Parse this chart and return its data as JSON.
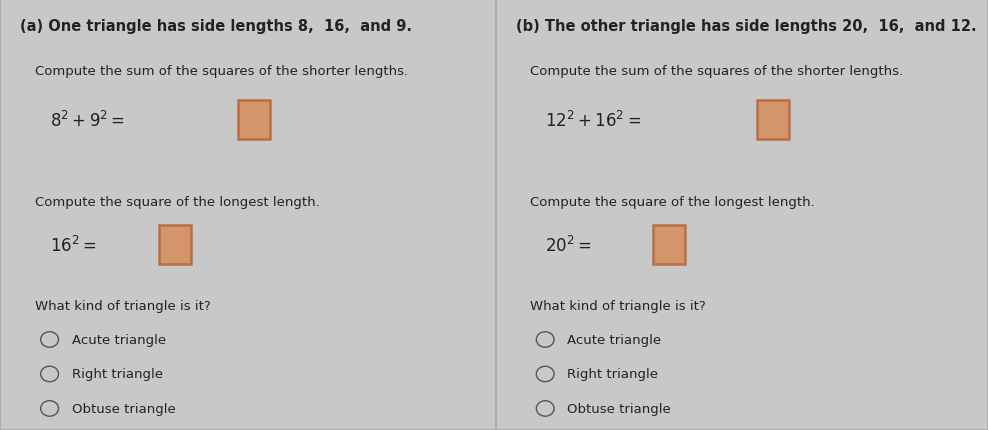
{
  "bg_color": "#c8c8c8",
  "panel_bg": "#d4d4d4",
  "left_panel": {
    "title": "(a) One triangle has side lengths 8,  16,  and 9.",
    "subtitle1": "Compute the sum of the squares of the shorter lengths.",
    "eq1": "$8^{2} + 9^{2} =$",
    "subtitle2": "Compute the square of the longest length.",
    "eq2": "$16^{2} =$",
    "subtitle3": "What kind of triangle is it?",
    "options": [
      "Acute triangle",
      "Right triangle",
      "Obtuse triangle"
    ]
  },
  "right_panel": {
    "title": "(b) The other triangle has side lengths 20,  16,  and 12.",
    "subtitle1": "Compute the sum of the squares of the shorter lengths.",
    "eq1": "$12^{2} + 16^{2} =$",
    "subtitle2": "Compute the square of the longest length.",
    "eq2": "$20^{2} =$",
    "subtitle3": "What kind of triangle is it?",
    "options": [
      "Acute triangle",
      "Right triangle",
      "Obtuse triangle"
    ]
  },
  "box_edge_color": "#b87040",
  "box_face_color": "#d4956a",
  "border_color": "#aaaaaa",
  "text_color": "#222222",
  "title_fontsize": 10.5,
  "body_fontsize": 9.5,
  "eq_fontsize": 12,
  "option_fontsize": 9.5
}
